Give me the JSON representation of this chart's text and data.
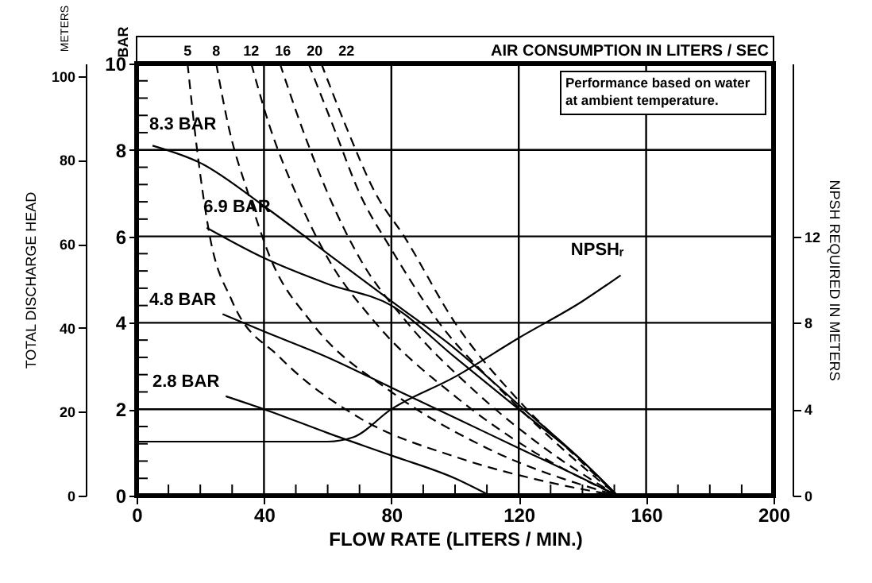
{
  "chart_data": {
    "type": "line",
    "xlabel": "FLOW RATE (LITERS / MIN.)",
    "ylabel": "BAR",
    "y2label": "NPSH REQUIRED IN METERS",
    "y3label": "TOTAL DISCHARGE HEAD",
    "legend_title": "AIR CONSUMPTION IN LITERS / SEC",
    "annotations": [
      "METERS",
      "Performance based on water at ambient temperature."
    ],
    "xlim": [
      0,
      200
    ],
    "xticks": [
      0,
      {
        "value": 10,
        "label": null
      },
      {
        "value": 20,
        "label": null
      },
      {
        "value": 30,
        "label": null
      },
      40,
      {
        "value": 50,
        "label": null
      },
      {
        "value": 60,
        "label": null
      },
      {
        "value": 70,
        "label": null
      },
      80,
      {
        "value": 90,
        "label": null
      },
      {
        "value": 100,
        "label": null
      },
      {
        "value": 110,
        "label": null
      },
      120,
      {
        "value": 130,
        "label": null
      },
      {
        "value": 140,
        "label": null
      },
      {
        "value": 150,
        "label": null
      },
      160,
      {
        "value": 170,
        "label": null
      },
      {
        "value": 180,
        "label": null
      },
      {
        "value": 190,
        "label": null
      },
      200
    ],
    "ylim": [
      0,
      10
    ],
    "yticks": [
      0,
      {
        "value": 0.4,
        "label": null
      },
      {
        "value": 0.8,
        "label": null
      },
      {
        "value": 1.2,
        "label": null
      },
      {
        "value": 1.6,
        "label": null
      },
      2,
      {
        "value": 2.4,
        "label": null
      },
      {
        "value": 2.8,
        "label": null
      },
      {
        "value": 3.2,
        "label": null
      },
      {
        "value": 3.6,
        "label": null
      },
      4,
      {
        "value": 4.4,
        "label": null
      },
      {
        "value": 4.8,
        "label": null
      },
      {
        "value": 5.2,
        "label": null
      },
      {
        "value": 5.6,
        "label": null
      },
      6,
      {
        "value": 6.4,
        "label": null
      },
      {
        "value": 6.8,
        "label": null
      },
      {
        "value": 7.2,
        "label": null
      },
      {
        "value": 7.6,
        "label": null
      },
      8,
      {
        "value": 8.4,
        "label": null
      },
      {
        "value": 8.8,
        "label": null
      },
      {
        "value": 9.2,
        "label": null
      },
      {
        "value": 9.6,
        "label": null
      },
      10
    ],
    "y2lim": [
      0,
      20
    ],
    "y2ticks": [
      0,
      4,
      8,
      12
    ],
    "y3lim": [
      0,
      103
    ],
    "y3ticks": [
      0,
      20,
      40,
      60,
      80,
      100
    ],
    "grid": true,
    "series": [
      {
        "name": "8.3 BAR",
        "color": "#000000",
        "line_style": "solid",
        "x": [
          5,
          20,
          40,
          60,
          80,
          100,
          120,
          140,
          151
        ],
        "values": [
          8.1,
          7.7,
          6.7,
          5.6,
          4.5,
          3.4,
          2.1,
          0.8,
          0
        ]
      },
      {
        "name": "6.9 BAR",
        "color": "#000000",
        "line_style": "solid",
        "x": [
          22,
          40,
          60,
          80,
          100,
          120,
          140,
          151
        ],
        "values": [
          6.2,
          5.5,
          4.9,
          4.4,
          3.2,
          2.0,
          0.8,
          0
        ]
      },
      {
        "name": "4.8 BAR",
        "color": "#000000",
        "line_style": "solid",
        "x": [
          27,
          40,
          60,
          80,
          100,
          120,
          140,
          151
        ],
        "values": [
          4.2,
          3.8,
          3.2,
          2.5,
          1.8,
          1.1,
          0.4,
          0
        ]
      },
      {
        "name": "2.8 BAR",
        "color": "#000000",
        "line_style": "solid",
        "x": [
          28,
          40,
          60,
          80,
          100,
          111
        ],
        "values": [
          2.3,
          2.0,
          1.45,
          0.93,
          0.4,
          0
        ]
      },
      {
        "name": "5",
        "color": "#000000",
        "line_style": "dashed",
        "x": [
          16,
          19,
          23,
          30,
          45,
          70,
          100,
          130,
          151
        ],
        "values": [
          10,
          8,
          6,
          4.5,
          3.2,
          1.8,
          0.9,
          0.3,
          0
        ]
      },
      {
        "name": "8",
        "color": "#000000",
        "line_style": "dashed",
        "x": [
          25,
          29,
          35,
          42,
          55,
          80,
          110,
          151
        ],
        "values": [
          10,
          8.5,
          7,
          5.5,
          4,
          2.4,
          1.1,
          0
        ]
      },
      {
        "name": "12",
        "color": "#000000",
        "line_style": "dashed",
        "x": [
          36,
          42,
          50,
          60,
          75,
          100,
          125,
          151
        ],
        "values": [
          10,
          8.5,
          7,
          5.5,
          4,
          2.3,
          1.0,
          0
        ]
      },
      {
        "name": "16",
        "color": "#000000",
        "line_style": "dashed",
        "x": [
          45,
          52,
          60,
          70,
          85,
          105,
          130,
          151
        ],
        "values": [
          10,
          8.5,
          7,
          5.5,
          4,
          2.5,
          1.0,
          0
        ]
      },
      {
        "name": "20",
        "color": "#000000",
        "line_style": "dashed",
        "x": [
          54,
          62,
          70,
          80,
          95,
          115,
          135,
          151
        ],
        "values": [
          10,
          8.5,
          7,
          5.7,
          4,
          2.4,
          1.0,
          0
        ]
      },
      {
        "name": "22",
        "color": "#000000",
        "line_style": "dashed",
        "x": [
          58,
          66,
          75,
          84,
          100,
          120,
          138,
          151
        ],
        "values": [
          10,
          8.5,
          7,
          6,
          4,
          2.2,
          0.9,
          0
        ]
      },
      {
        "name": "NPSHᵣ",
        "color": "#000000",
        "line_style": "solid",
        "axis": "y2",
        "x": [
          0,
          60,
          68,
          80,
          100,
          120,
          140,
          152
        ],
        "values": [
          2.5,
          2.5,
          2.7,
          4.0,
          5.5,
          7.3,
          9.0,
          10.2
        ]
      }
    ]
  }
}
